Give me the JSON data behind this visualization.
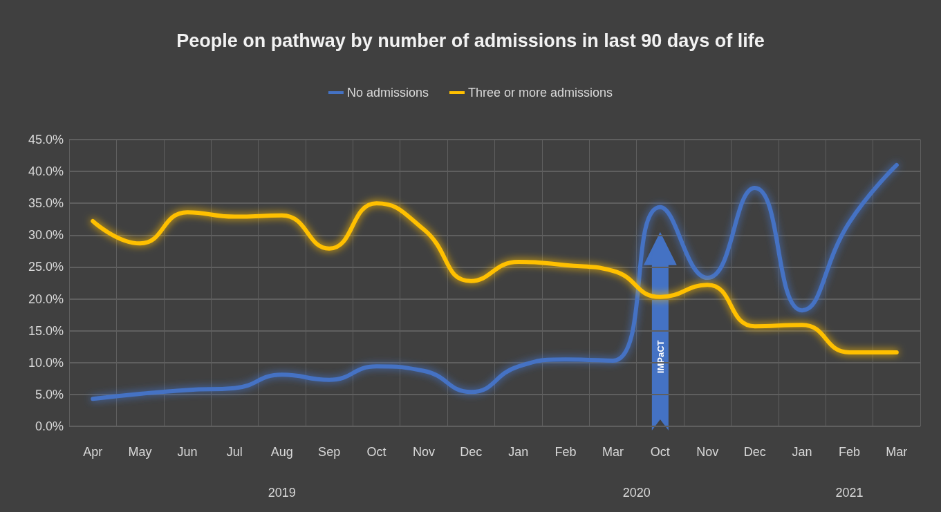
{
  "chart_data": {
    "type": "line",
    "title": "People on pathway by number of admissions in last 90 days of life",
    "categories": [
      "Apr",
      "May",
      "Jun",
      "Jul",
      "Aug",
      "Sep",
      "Oct",
      "Nov",
      "Dec",
      "Jan",
      "Feb",
      "Mar",
      "Oct",
      "Nov",
      "Dec",
      "Jan",
      "Feb",
      "Mar"
    ],
    "series": [
      {
        "name": "No admissions",
        "color": "#4472c4",
        "values": [
          4.3,
          5.1,
          5.7,
          6.0,
          8.1,
          7.3,
          9.4,
          8.7,
          5.4,
          9.4,
          10.5,
          10.3,
          34.4,
          23.3,
          37.4,
          18.2,
          32.0,
          41.0
        ]
      },
      {
        "name": "Three or more admissions",
        "color": "#ffc000",
        "values": [
          32.2,
          28.7,
          33.6,
          32.9,
          33.1,
          27.9,
          35.0,
          30.9,
          22.8,
          25.8,
          25.3,
          24.4,
          20.3,
          22.2,
          15.7,
          15.9,
          11.6,
          11.6
        ]
      }
    ],
    "ylim": [
      0,
      45
    ],
    "yticks": [
      {
        "value": 0,
        "label": "0.0%"
      },
      {
        "value": 5,
        "label": "5.0%"
      },
      {
        "value": 10,
        "label": "10.0%"
      },
      {
        "value": 15,
        "label": "15.0%"
      },
      {
        "value": 20,
        "label": "20.0%"
      },
      {
        "value": 25,
        "label": "25.0%"
      },
      {
        "value": 30,
        "label": "30.0%"
      },
      {
        "value": 35,
        "label": "35.0%"
      },
      {
        "value": 40,
        "label": "40.0%"
      },
      {
        "value": 45,
        "label": "45.0%"
      }
    ],
    "annotations": [
      "2019",
      "2020",
      "2021",
      "IMPaCT"
    ],
    "grid": true,
    "legend": "top",
    "marker": "none",
    "line_style": "solid"
  }
}
